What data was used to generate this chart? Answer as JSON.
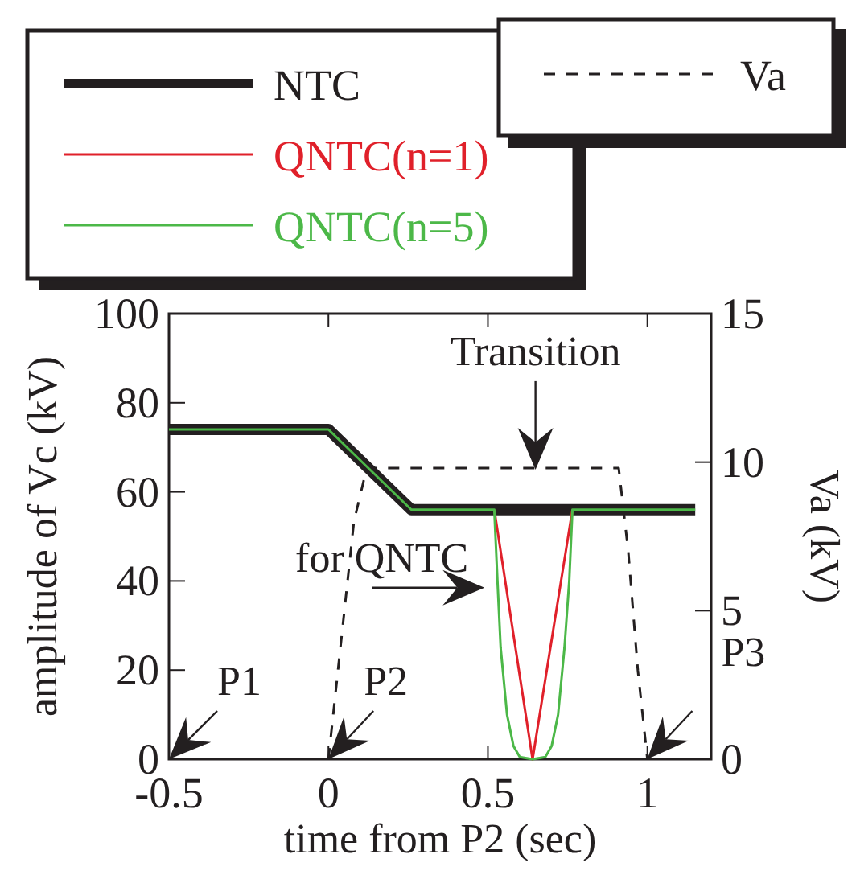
{
  "chart_data": {
    "type": "line",
    "xlabel": "time from P2 (sec)",
    "ylabel": "amplitude of Vc (kV)",
    "y2label": "Va (kV)",
    "xlim": [
      -0.5,
      1.2
    ],
    "xticks": [
      -0.5,
      0,
      0.5,
      1
    ],
    "ylim": [
      0,
      100
    ],
    "yticks": [
      0,
      20,
      40,
      60,
      80,
      100
    ],
    "y2lim": [
      0,
      15
    ],
    "y2ticks": [
      0,
      5,
      10,
      15
    ],
    "grid": false,
    "legend": "top",
    "marker": "none",
    "series": [
      {
        "name": "NTC",
        "color": "#231f20",
        "x": [
          -0.5,
          0,
          0.26,
          1.15
        ],
        "values": [
          74,
          74,
          56,
          56
        ]
      },
      {
        "name": "QNTC(n=1)",
        "color": "#e0202a",
        "x": [
          0.52,
          0.64,
          0.765
        ],
        "values": [
          56,
          0,
          56
        ]
      },
      {
        "name": "QNTC(n=5)",
        "color": "#4cb848",
        "x": [
          -0.5,
          0,
          0.26,
          0.52,
          0.53,
          0.54,
          0.56,
          0.58,
          0.6,
          0.64,
          0.68,
          0.7,
          0.72,
          0.74,
          0.755,
          0.765,
          1.15
        ],
        "values": [
          74,
          74,
          56,
          56,
          40,
          25,
          10,
          3,
          0.5,
          0,
          0.5,
          3,
          10,
          25,
          40,
          56,
          56
        ]
      },
      {
        "name": "Va",
        "color": "#231f20",
        "axis": "y2",
        "line_style": "dashed",
        "x": [
          0,
          0.04,
          0.08,
          0.12,
          0.91,
          0.94,
          0.97,
          1.0
        ],
        "values": [
          0,
          4,
          8,
          9.8,
          9.8,
          7,
          3,
          0
        ]
      }
    ],
    "annotations": [
      "P1",
      "P2",
      "P3",
      "Transition",
      "for QNTC"
    ]
  }
}
